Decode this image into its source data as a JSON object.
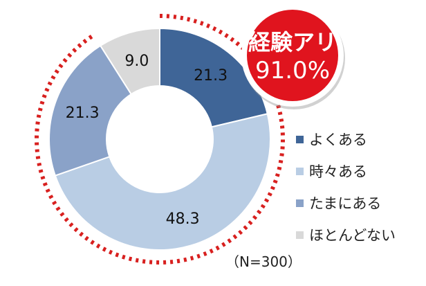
{
  "chart_data": {
    "type": "pie",
    "donut": true,
    "categories": [
      "よくある",
      "時々ある",
      "たまにある",
      "ほとんどない"
    ],
    "values": [
      21.3,
      48.3,
      21.3,
      9.0
    ],
    "value_labels": [
      "21.3",
      "48.3",
      "21.3",
      "9.0"
    ],
    "colors": [
      "#3f6597",
      "#b9cde4",
      "#8aa2c8",
      "#d9d9d9"
    ],
    "legend_position": "right",
    "annotation": {
      "line1": "経験アリ",
      "line2": "91.0%",
      "color": "#e0141e"
    },
    "highlight_arc_color": "#d8201f",
    "sample_size_label": "（N=300）"
  }
}
